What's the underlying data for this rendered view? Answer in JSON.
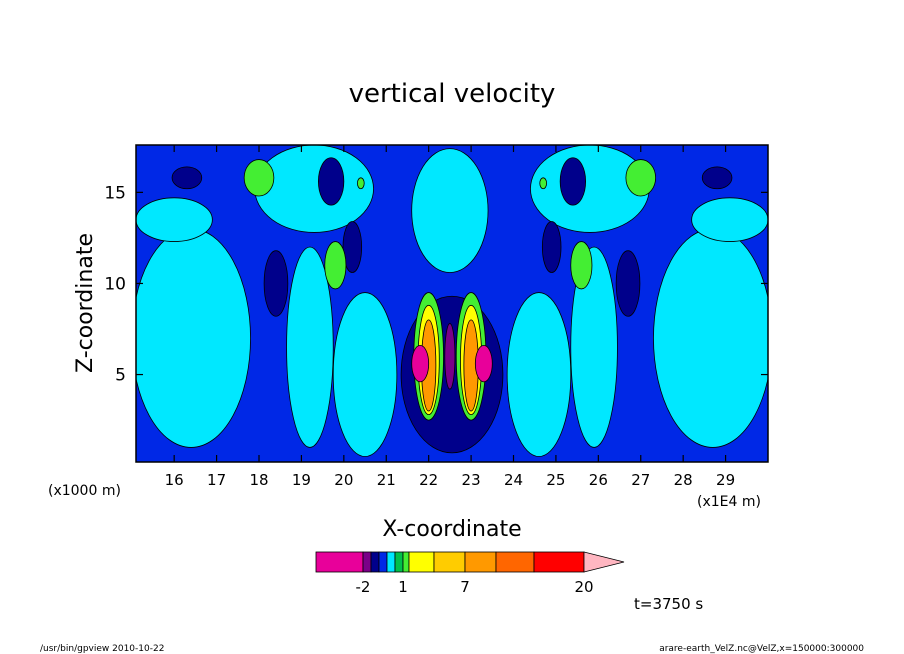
{
  "chart_data": {
    "type": "contour",
    "title": "vertical velocity",
    "xlabel": "X-coordinate",
    "ylabel": "Z-coordinate",
    "x_unit_left": "(x1000 m)",
    "x_unit_right": "(x1E4 m)",
    "xlim": [
      15.1,
      30.0
    ],
    "ylim": [
      0.2,
      17.6
    ],
    "x_ticks": [
      16,
      17,
      18,
      19,
      20,
      21,
      22,
      23,
      24,
      25,
      26,
      27,
      28,
      29
    ],
    "y_ticks": [
      5,
      10,
      15
    ],
    "colorbar": {
      "tick_labels": [
        "-2",
        "1",
        "7",
        "20"
      ],
      "tick_values": [
        -2,
        1,
        7,
        20
      ],
      "bands": [
        {
          "level": -6,
          "color": "#e8009a"
        },
        {
          "level": -2,
          "color": "#7a0088"
        },
        {
          "level": -1,
          "color": "#00008b"
        },
        {
          "level": -0.5,
          "color": "#0028e6"
        },
        {
          "level": 0,
          "color": "#00e8ff"
        },
        {
          "level": 0.5,
          "color": "#00c04a"
        },
        {
          "level": 1,
          "color": "#44ee33"
        },
        {
          "level": 2,
          "color": "#ffff00"
        },
        {
          "level": 4,
          "color": "#ffcc00"
        },
        {
          "level": 7,
          "color": "#ff9900"
        },
        {
          "level": 10,
          "color": "#ff6600"
        },
        {
          "level": 15,
          "color": "#ff0000"
        },
        {
          "level": 20,
          "color": "#ff7f7f"
        },
        {
          "level": 30,
          "color": "#ffb6c1"
        }
      ]
    },
    "regions_in_data_units": [
      {
        "kind": "rect",
        "x": [
          15.1,
          30.0
        ],
        "y": [
          0.2,
          17.6
        ],
        "color": "#0028e6"
      },
      {
        "kind": "ellipse",
        "cx": 16.4,
        "cy": 7.0,
        "rx": 1.4,
        "ry": 6.0,
        "color": "#00e8ff"
      },
      {
        "kind": "ellipse",
        "cx": 28.7,
        "cy": 7.0,
        "rx": 1.4,
        "ry": 6.0,
        "color": "#00e8ff"
      },
      {
        "kind": "ellipse",
        "cx": 16.0,
        "cy": 13.5,
        "rx": 0.9,
        "ry": 1.2,
        "color": "#00e8ff"
      },
      {
        "kind": "ellipse",
        "cx": 29.1,
        "cy": 13.5,
        "rx": 0.9,
        "ry": 1.2,
        "color": "#00e8ff"
      },
      {
        "kind": "ellipse",
        "cx": 19.2,
        "cy": 6.5,
        "rx": 0.55,
        "ry": 5.5,
        "color": "#00e8ff"
      },
      {
        "kind": "ellipse",
        "cx": 25.9,
        "cy": 6.5,
        "rx": 0.55,
        "ry": 5.5,
        "color": "#00e8ff"
      },
      {
        "kind": "ellipse",
        "cx": 20.5,
        "cy": 5.0,
        "rx": 0.75,
        "ry": 4.5,
        "color": "#00e8ff"
      },
      {
        "kind": "ellipse",
        "cx": 24.6,
        "cy": 5.0,
        "rx": 0.75,
        "ry": 4.5,
        "color": "#00e8ff"
      },
      {
        "kind": "ellipse",
        "cx": 19.3,
        "cy": 15.2,
        "rx": 1.4,
        "ry": 2.4,
        "color": "#00e8ff"
      },
      {
        "kind": "ellipse",
        "cx": 25.8,
        "cy": 15.2,
        "rx": 1.4,
        "ry": 2.4,
        "color": "#00e8ff"
      },
      {
        "kind": "ellipse",
        "cx": 22.5,
        "cy": 14.0,
        "rx": 0.9,
        "ry": 3.4,
        "color": "#00e8ff"
      },
      {
        "kind": "ellipse",
        "cx": 16.3,
        "cy": 15.8,
        "rx": 0.35,
        "ry": 0.6,
        "color": "#00008b"
      },
      {
        "kind": "ellipse",
        "cx": 28.8,
        "cy": 15.8,
        "rx": 0.35,
        "ry": 0.6,
        "color": "#00008b"
      },
      {
        "kind": "ellipse",
        "cx": 19.7,
        "cy": 15.6,
        "rx": 0.3,
        "ry": 1.3,
        "color": "#00008b"
      },
      {
        "kind": "ellipse",
        "cx": 25.4,
        "cy": 15.6,
        "rx": 0.3,
        "ry": 1.3,
        "color": "#00008b"
      },
      {
        "kind": "ellipse",
        "cx": 18.4,
        "cy": 10.0,
        "rx": 0.28,
        "ry": 1.8,
        "color": "#00008b"
      },
      {
        "kind": "ellipse",
        "cx": 26.7,
        "cy": 10.0,
        "rx": 0.28,
        "ry": 1.8,
        "color": "#00008b"
      },
      {
        "kind": "ellipse",
        "cx": 20.2,
        "cy": 12.0,
        "rx": 0.22,
        "ry": 1.4,
        "color": "#00008b"
      },
      {
        "kind": "ellipse",
        "cx": 24.9,
        "cy": 12.0,
        "rx": 0.22,
        "ry": 1.4,
        "color": "#00008b"
      },
      {
        "kind": "ellipse",
        "cx": 18.0,
        "cy": 15.8,
        "rx": 0.35,
        "ry": 1.0,
        "color": "#44ee33"
      },
      {
        "kind": "ellipse",
        "cx": 27.0,
        "cy": 15.8,
        "rx": 0.35,
        "ry": 1.0,
        "color": "#44ee33"
      },
      {
        "kind": "ellipse",
        "cx": 19.8,
        "cy": 11.0,
        "rx": 0.25,
        "ry": 1.3,
        "color": "#44ee33"
      },
      {
        "kind": "ellipse",
        "cx": 25.6,
        "cy": 11.0,
        "rx": 0.25,
        "ry": 1.3,
        "color": "#44ee33"
      },
      {
        "kind": "ellipse",
        "cx": 20.4,
        "cy": 15.5,
        "rx": 0.08,
        "ry": 0.3,
        "color": "#44ee33"
      },
      {
        "kind": "ellipse",
        "cx": 24.7,
        "cy": 15.5,
        "rx": 0.08,
        "ry": 0.3,
        "color": "#44ee33"
      },
      {
        "kind": "ellipse",
        "cx": 22.55,
        "cy": 5.0,
        "rx": 1.2,
        "ry": 4.3,
        "color": "#00008b"
      },
      {
        "kind": "ellipse",
        "cx": 22.0,
        "cy": 6.0,
        "rx": 0.35,
        "ry": 3.5,
        "color": "#44ee33"
      },
      {
        "kind": "ellipse",
        "cx": 23.0,
        "cy": 6.0,
        "rx": 0.35,
        "ry": 3.5,
        "color": "#44ee33"
      },
      {
        "kind": "ellipse",
        "cx": 22.0,
        "cy": 5.8,
        "rx": 0.25,
        "ry": 3.0,
        "color": "#ffff00"
      },
      {
        "kind": "ellipse",
        "cx": 23.0,
        "cy": 5.8,
        "rx": 0.25,
        "ry": 3.0,
        "color": "#ffff00"
      },
      {
        "kind": "ellipse",
        "cx": 22.0,
        "cy": 5.5,
        "rx": 0.17,
        "ry": 2.5,
        "color": "#ff9900"
      },
      {
        "kind": "ellipse",
        "cx": 23.0,
        "cy": 5.5,
        "rx": 0.17,
        "ry": 2.5,
        "color": "#ff9900"
      },
      {
        "kind": "ellipse",
        "cx": 21.8,
        "cy": 5.6,
        "rx": 0.2,
        "ry": 1.0,
        "color": "#e8009a"
      },
      {
        "kind": "ellipse",
        "cx": 23.3,
        "cy": 5.6,
        "rx": 0.2,
        "ry": 1.0,
        "color": "#e8009a"
      },
      {
        "kind": "ellipse",
        "cx": 22.5,
        "cy": 6.0,
        "rx": 0.12,
        "ry": 1.8,
        "color": "#7a0088"
      }
    ],
    "grid": false
  },
  "annotations": {
    "time_label": "t=3750 s",
    "footer_left": "/usr/bin/gpview   2010-10-22",
    "footer_right": "arare-earth_VelZ.nc@VelZ,x=150000:300000"
  }
}
